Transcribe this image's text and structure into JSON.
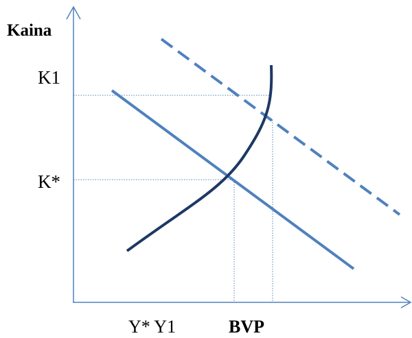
{
  "diagram": {
    "y_axis_label": "Kaina",
    "price_labels": {
      "k1": "K1",
      "k_star": "K*"
    },
    "x_labels": {
      "y_star_y1": "Y* Y1",
      "bvp": "BVP"
    }
  },
  "colors": {
    "axis": "#4F81BD",
    "demand_line": "#4F81BD",
    "supply_curve": "#1F3864",
    "guides": "#4F81BD",
    "text": "#000000"
  }
}
